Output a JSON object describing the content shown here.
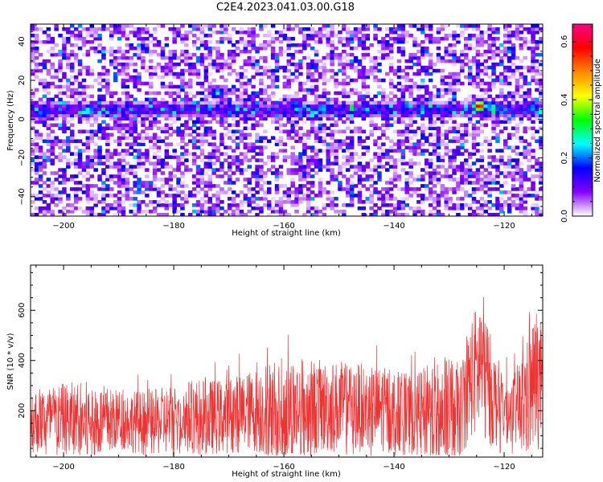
{
  "title": "C2E4.2023.041.03.00.G18",
  "chart_data": [
    {
      "type": "heatmap",
      "xlabel": "Height of straight line (km)",
      "ylabel": "Frequency (Hz)",
      "xlim": [
        -206,
        -113
      ],
      "ylim": [
        -50,
        49
      ],
      "xticks": [
        -200,
        -180,
        -160,
        -140,
        -120
      ],
      "yticks": [
        -40,
        -20,
        0,
        20,
        40
      ],
      "colorbar": {
        "label": "Normalized spectral amplitude",
        "range": [
          0,
          0.66
        ],
        "ticks": [
          0.0,
          0.2,
          0.4,
          0.6
        ],
        "colors": [
          "#ffffff",
          "#8800ff",
          "#0000ff",
          "#00ffff",
          "#00ff00",
          "#ffff00",
          "#ff8800",
          "#ff0000",
          "#ff0088"
        ]
      },
      "dominant_band": {
        "frequency": 5,
        "halfwidth": 3
      },
      "peak_spots": [
        {
          "x": -204.0,
          "y": 3,
          "value": 0.22
        },
        {
          "x": -196.0,
          "y": 4,
          "value": 0.28
        },
        {
          "x": -172.0,
          "y": 14,
          "value": 0.26
        },
        {
          "x": -158.0,
          "y": 8,
          "value": 0.22
        },
        {
          "x": -153.0,
          "y": 6,
          "value": 0.26
        },
        {
          "x": -145.0,
          "y": 5,
          "value": 0.25
        },
        {
          "x": -135.0,
          "y": 6,
          "value": 0.24
        },
        {
          "x": -124.5,
          "y": 7,
          "value": 0.62
        },
        {
          "x": -122.0,
          "y": 6,
          "value": 0.32
        },
        {
          "x": -115.0,
          "y": 6,
          "value": 0.24
        }
      ]
    },
    {
      "type": "line",
      "xlabel": "Height of straight line (km)",
      "ylabel": "SNR (10 * v/v)",
      "xlim": [
        -206,
        -113
      ],
      "ylim": [
        15,
        780
      ],
      "xticks": [
        -200,
        -180,
        -160,
        -140,
        -120
      ],
      "yticks": [
        200,
        400,
        600
      ],
      "color": "#ee3333",
      "envelope": [
        {
          "x": -206,
          "base": 160,
          "amp": 130
        },
        {
          "x": -200,
          "base": 170,
          "amp": 140
        },
        {
          "x": -196,
          "base": 150,
          "amp": 170
        },
        {
          "x": -190,
          "base": 165,
          "amp": 120
        },
        {
          "x": -184,
          "base": 150,
          "amp": 130
        },
        {
          "x": -178,
          "base": 175,
          "amp": 150
        },
        {
          "x": -172,
          "base": 175,
          "amp": 150
        },
        {
          "x": -166,
          "base": 200,
          "amp": 160
        },
        {
          "x": -160,
          "base": 205,
          "amp": 220
        },
        {
          "x": -154,
          "base": 215,
          "amp": 190
        },
        {
          "x": -148,
          "base": 215,
          "amp": 180
        },
        {
          "x": -142,
          "base": 205,
          "amp": 170
        },
        {
          "x": -136,
          "base": 180,
          "amp": 160
        },
        {
          "x": -132,
          "base": 200,
          "amp": 230
        },
        {
          "x": -128,
          "base": 200,
          "amp": 190
        },
        {
          "x": -126,
          "base": 330,
          "amp": 240
        },
        {
          "x": -124,
          "base": 390,
          "amp": 300
        },
        {
          "x": -122,
          "base": 250,
          "amp": 200
        },
        {
          "x": -119,
          "base": 190,
          "amp": 120
        },
        {
          "x": -116,
          "base": 240,
          "amp": 230
        },
        {
          "x": -114,
          "base": 330,
          "amp": 300
        },
        {
          "x": -113,
          "base": 300,
          "amp": 200
        }
      ]
    }
  ]
}
